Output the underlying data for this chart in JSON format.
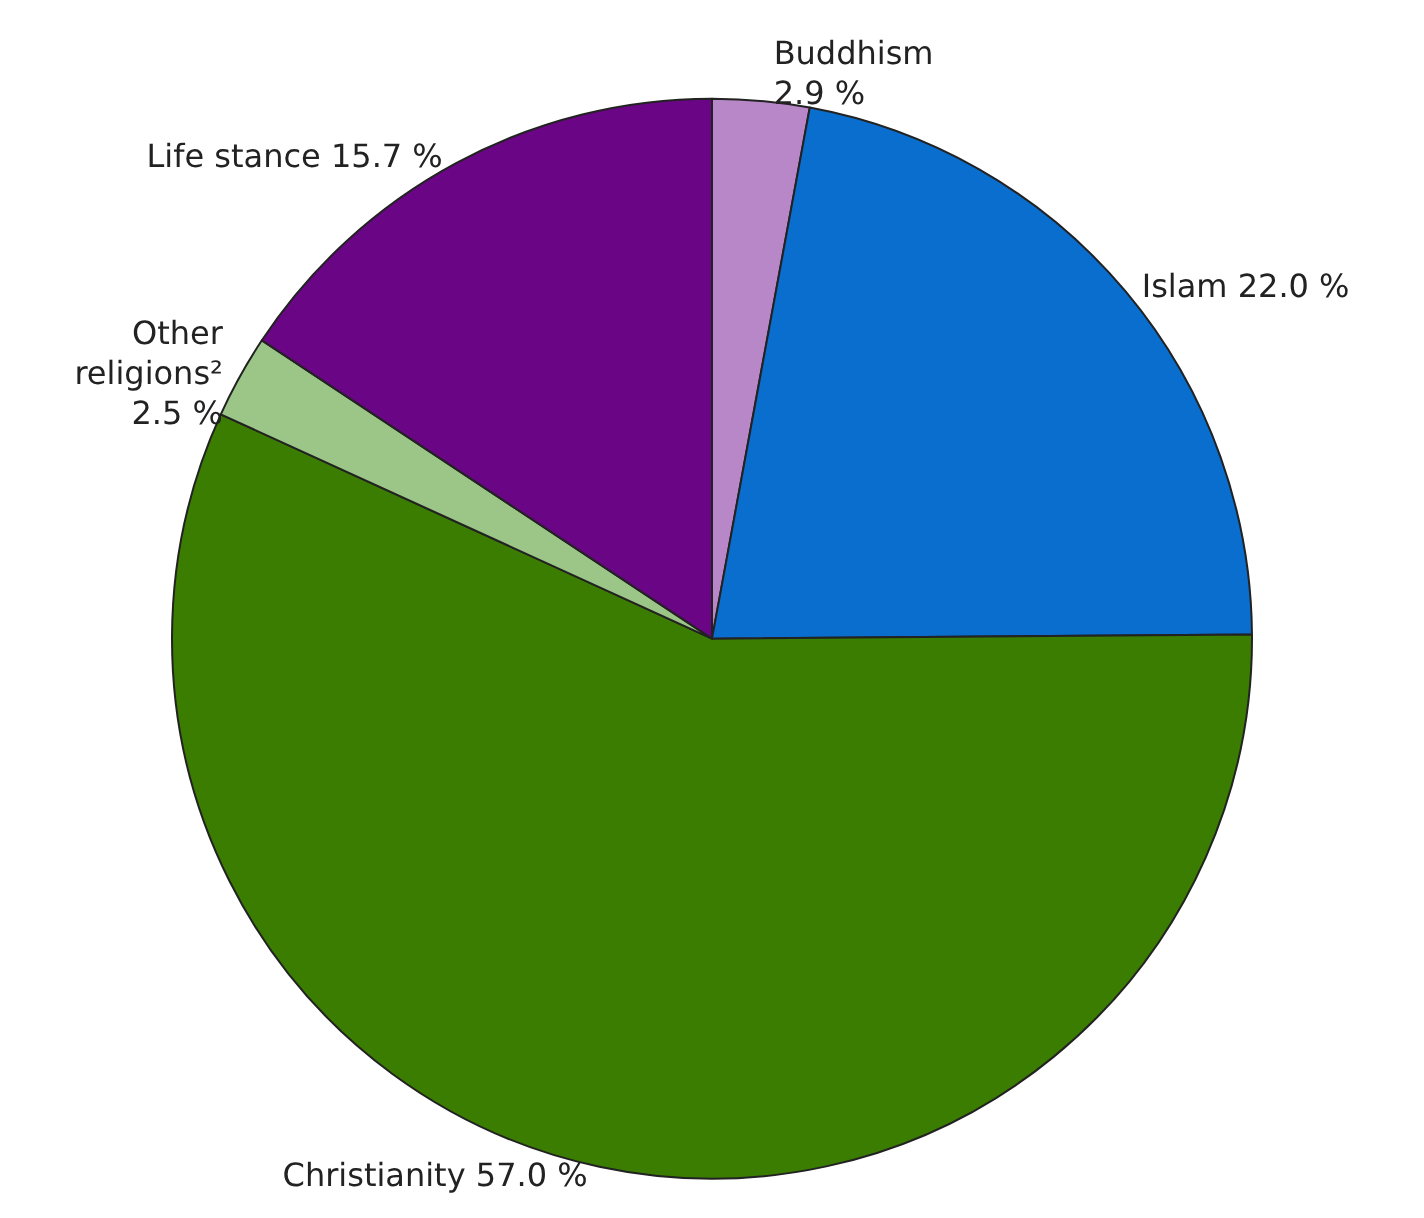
{
  "chart_data": {
    "type": "pie",
    "categories": [
      "Buddhism",
      "Islam",
      "Christianity",
      "Other religions²",
      "Life stance"
    ],
    "values": [
      2.9,
      22.0,
      57.0,
      2.5,
      15.7
    ],
    "value_labels": [
      "2.9 %",
      "22.0 %",
      "57.0 %",
      "2.5 %",
      "15.7 %"
    ],
    "colors": [
      "#b887c8",
      "#0a6ecf",
      "#3a7d00",
      "#9cc687",
      "#6a0585"
    ],
    "legend": false
  }
}
